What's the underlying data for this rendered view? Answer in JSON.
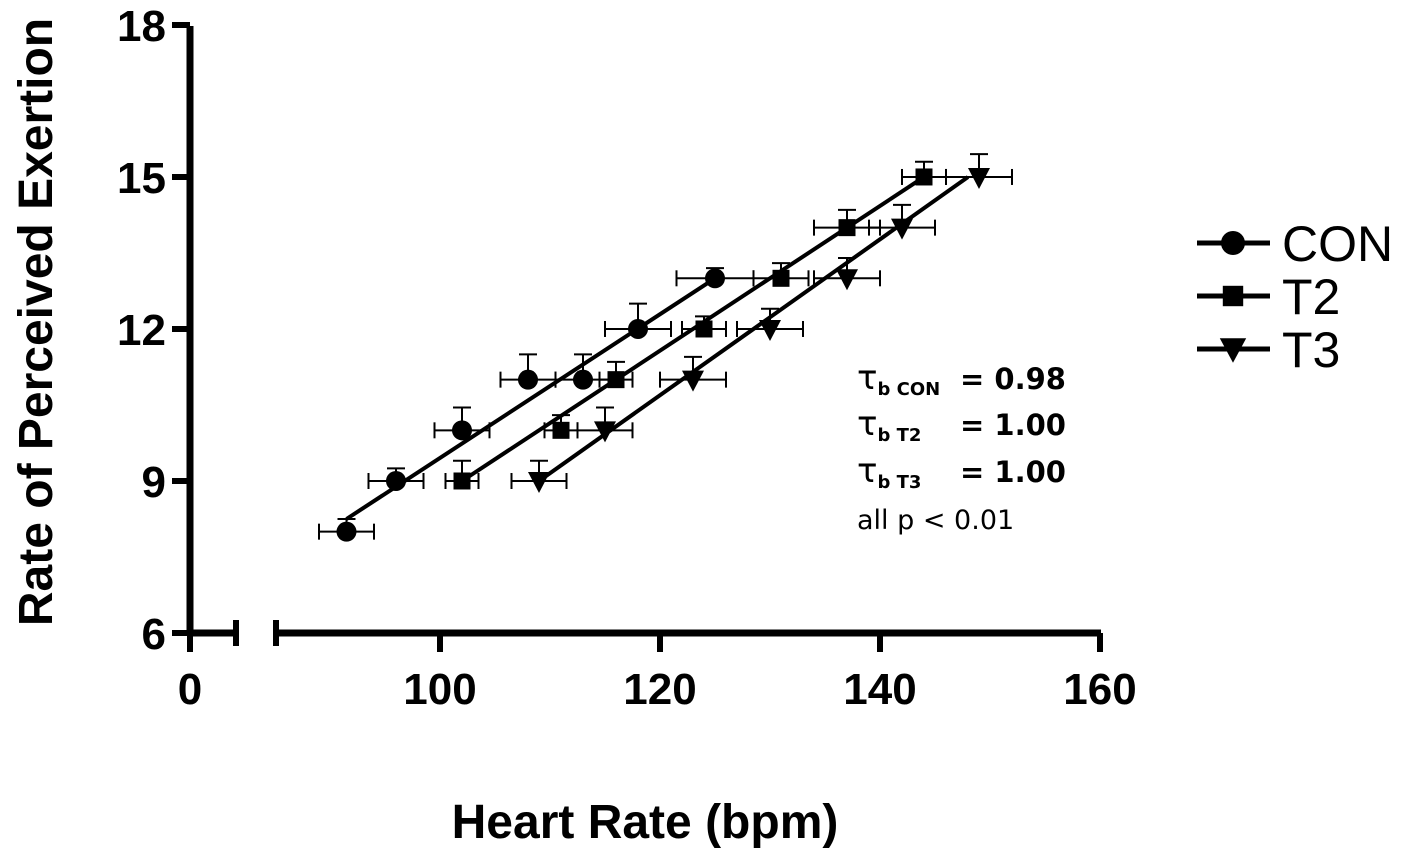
{
  "chart_data": {
    "type": "scatter",
    "xlabel": "Heart Rate (bpm)",
    "ylabel": "Rate of Perceived Exertion",
    "xlim": [
      0,
      160
    ],
    "ylim": [
      6,
      18
    ],
    "x_axis_break": true,
    "x_ticks": [
      "0",
      "100",
      "120",
      "140",
      "160"
    ],
    "y_ticks": [
      "6",
      "9",
      "12",
      "15",
      "18"
    ],
    "legend_position": "right",
    "series": [
      {
        "name": "CON",
        "marker": "circle",
        "points": [
          {
            "x": 91.5,
            "y": 8,
            "xerr": 2.5,
            "yerr": 0.25
          },
          {
            "x": 96,
            "y": 9,
            "xerr": 2.5,
            "yerr": 0.25
          },
          {
            "x": 102,
            "y": 10,
            "xerr": 2.5,
            "yerr": 0.45
          },
          {
            "x": 108,
            "y": 11,
            "xerr": 2.5,
            "yerr": 0.5
          },
          {
            "x": 113,
            "y": 11,
            "xerr": 2.5,
            "yerr": 0.5
          },
          {
            "x": 118,
            "y": 12,
            "xerr": 3,
            "yerr": 0.5
          },
          {
            "x": 125,
            "y": 13,
            "xerr": 3.5,
            "yerr": 0.2
          }
        ],
        "fit": {
          "x1": 91.5,
          "y1": 8.25,
          "x2": 125,
          "y2": 13
        }
      },
      {
        "name": "T2",
        "marker": "square",
        "points": [
          {
            "x": 102,
            "y": 9,
            "xerr": 1.5,
            "yerr": 0.4
          },
          {
            "x": 111,
            "y": 10,
            "xerr": 1.5,
            "yerr": 0.3
          },
          {
            "x": 116,
            "y": 11,
            "xerr": 1.5,
            "yerr": 0.35
          },
          {
            "x": 124,
            "y": 12,
            "xerr": 2,
            "yerr": 0.25
          },
          {
            "x": 131,
            "y": 13,
            "xerr": 2.5,
            "yerr": 0.3
          },
          {
            "x": 137,
            "y": 14,
            "xerr": 3,
            "yerr": 0.35
          },
          {
            "x": 144,
            "y": 15,
            "xerr": 2,
            "yerr": 0.3
          }
        ],
        "fit": {
          "x1": 102,
          "y1": 9,
          "x2": 144,
          "y2": 15
        }
      },
      {
        "name": "T3",
        "marker": "triangle-down",
        "points": [
          {
            "x": 109,
            "y": 9,
            "xerr": 2.5,
            "yerr": 0.4
          },
          {
            "x": 115,
            "y": 10,
            "xerr": 2.5,
            "yerr": 0.45
          },
          {
            "x": 123,
            "y": 11,
            "xerr": 3,
            "yerr": 0.45
          },
          {
            "x": 130,
            "y": 12,
            "xerr": 3,
            "yerr": 0.4
          },
          {
            "x": 137,
            "y": 13,
            "xerr": 3,
            "yerr": 0.4
          },
          {
            "x": 142,
            "y": 14,
            "xerr": 3,
            "yerr": 0.45
          },
          {
            "x": 149,
            "y": 15,
            "xerr": 3,
            "yerr": 0.45
          }
        ],
        "fit": {
          "x1": 109,
          "y1": 9,
          "x2": 148,
          "y2": 15
        }
      }
    ],
    "annotations": [
      {
        "symbol": "τ",
        "sub": "b CON",
        "value": "= 0.98"
      },
      {
        "symbol": "τ",
        "sub": "b T2",
        "value": "= 1.00"
      },
      {
        "symbol": "τ",
        "sub": "b T3",
        "value": "= 1.00"
      }
    ],
    "footnote": "all p < 0.01"
  }
}
